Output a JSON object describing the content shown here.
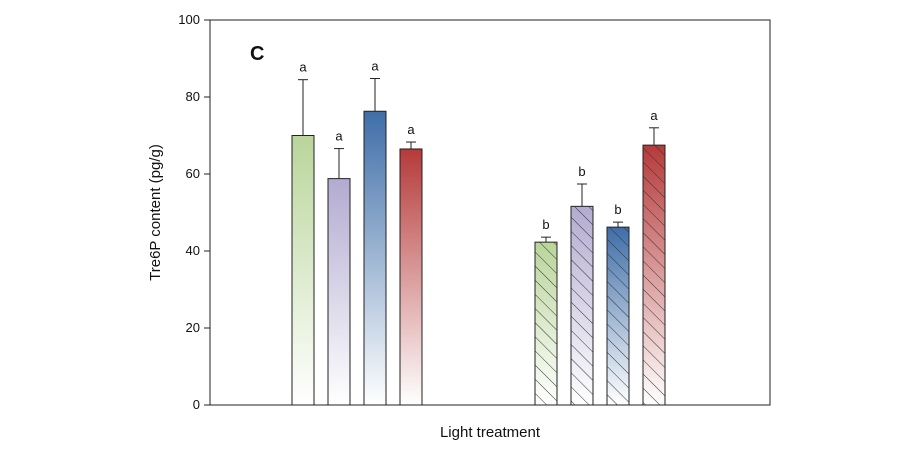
{
  "chart_data": {
    "type": "bar",
    "panel_label": "C",
    "ylabel": "Tre6P content (pg/g)",
    "xlabel": "Light treatment",
    "ylim": [
      0,
      100
    ],
    "yticks": [
      0,
      20,
      40,
      60,
      80,
      100
    ],
    "grid": false,
    "legend": "none",
    "groups": [
      {
        "hatched": false,
        "bars": [
          {
            "value": 70.0,
            "error": 14.5,
            "letter": "a",
            "color": "#b9d59a"
          },
          {
            "value": 58.8,
            "error": 7.8,
            "letter": "a",
            "color": "#b3abd0"
          },
          {
            "value": 76.3,
            "error": 8.5,
            "letter": "a",
            "color": "#3f6ea8"
          },
          {
            "value": 66.5,
            "error": 1.8,
            "letter": "a",
            "color": "#b63a3a"
          }
        ]
      },
      {
        "hatched": true,
        "bars": [
          {
            "value": 42.3,
            "error": 1.3,
            "letter": "b",
            "color": "#b9d59a"
          },
          {
            "value": 51.6,
            "error": 5.8,
            "letter": "b",
            "color": "#b3abd0"
          },
          {
            "value": 46.2,
            "error": 1.3,
            "letter": "b",
            "color": "#3f6ea8"
          },
          {
            "value": 67.5,
            "error": 4.5,
            "letter": "a",
            "color": "#b63a3a"
          }
        ]
      }
    ]
  }
}
